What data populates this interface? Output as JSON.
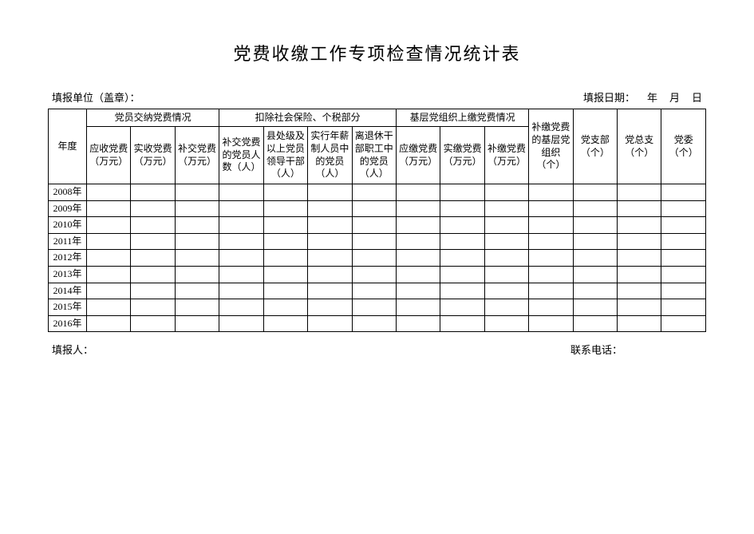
{
  "title": "党费收缴工作专项检查情况统计表",
  "meta": {
    "unit_label": "填报单位（盖章）：",
    "date_label": "填报日期：",
    "date_y": "年",
    "date_m": "月",
    "date_d": "日"
  },
  "headers": {
    "year": "年度",
    "group1": "党员交纳党费情况",
    "group2": "扣除社会保险、个税部分",
    "group3": "基层党组织上缴党费情况",
    "col1": "应收党费（万元）",
    "col2": "实收党费（万元）",
    "col3": "补交党费（万元）",
    "col4": "补交党费的党员人数（人）",
    "col5": "县处级及以上党员领导干部（人）",
    "col6": "实行年薪制人员中的党员（人）",
    "col7": "离退休干部职工中的党员（人）",
    "col8": "应缴党费（万元）",
    "col9": "实缴党费（万元）",
    "col10": "补缴党费（万元）",
    "col11": "补缴党费的基层党组织（个）",
    "col12": "党支部（个）",
    "col13": "党总支（个）",
    "col14": "党委（个）"
  },
  "years": [
    "2008年",
    "2009年",
    "2010年",
    "2011年",
    "2012年",
    "2013年",
    "2014年",
    "2015年",
    "2016年"
  ],
  "footer": {
    "reporter_label": "填报人：",
    "phone_label": "联系电话："
  },
  "colors": {
    "background": "#ffffff",
    "border": "#000000",
    "text": "#000000"
  }
}
